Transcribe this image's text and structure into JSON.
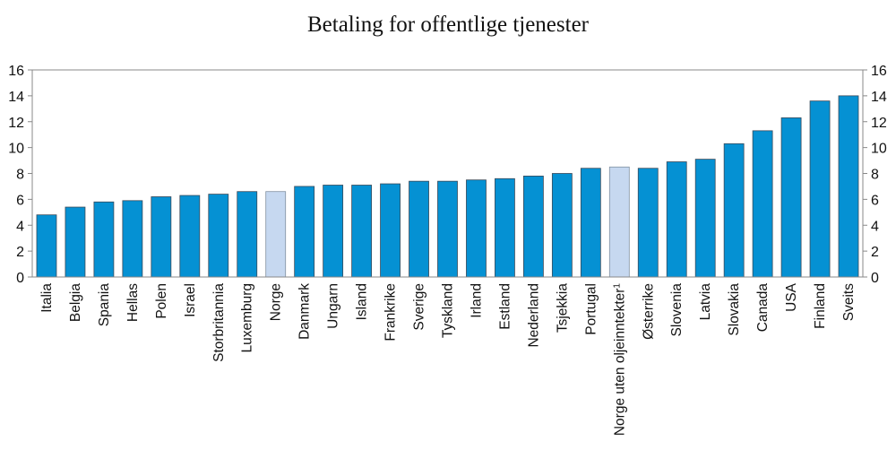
{
  "chart_data": {
    "type": "bar",
    "title": "Betaling for offentlige tjenester",
    "xlabel": "",
    "ylabel": "",
    "ylim": [
      0,
      16
    ],
    "yticks": [
      0,
      2,
      4,
      6,
      8,
      10,
      12,
      14,
      16
    ],
    "categories": [
      "Italia",
      "Belgia",
      "Spania",
      "Hellas",
      "Polen",
      "Israel",
      "Storbritannia",
      "Luxemburg",
      "Norge",
      "Danmark",
      "Ungarn",
      "Island",
      "Frankrike",
      "Sverige",
      "Tyskland",
      "Irland",
      "Estland",
      "Nederland",
      "Tsjekkia",
      "Portugal",
      "Norge uten oljeinntekter",
      "Østerrike",
      "Slovenia",
      "Latvia",
      "Slovakia",
      "Canada",
      "USA",
      "Finland",
      "Sveits"
    ],
    "footnote_marker": "1",
    "footnote_category": "Norge uten oljeinntekter",
    "values": [
      4.8,
      5.4,
      5.8,
      5.9,
      6.2,
      6.3,
      6.4,
      6.6,
      6.6,
      7.0,
      7.1,
      7.1,
      7.2,
      7.4,
      7.4,
      7.5,
      7.6,
      7.8,
      8.0,
      8.4,
      8.5,
      8.4,
      8.9,
      9.1,
      10.3,
      11.3,
      12.3,
      13.6,
      14.0
    ],
    "highlight": [
      "Norge",
      "Norge uten oljeinntekter"
    ],
    "colors": {
      "bar": "#0591d3",
      "highlight": "#c6d8f0",
      "outline": "#3a4a5a",
      "axis": "#888888"
    },
    "grid": false,
    "legend": "none"
  }
}
